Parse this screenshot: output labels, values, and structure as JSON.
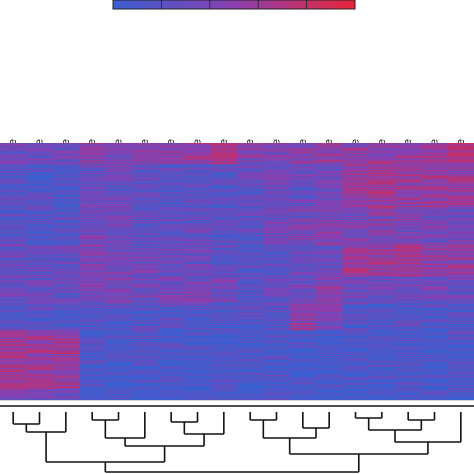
{
  "chart_data": {
    "type": "heatmap",
    "title": "",
    "xlabel": "",
    "ylabel": "",
    "legend": {
      "placement": "top-center",
      "colors": [
        "#3b5fd0",
        "#8a3fb0",
        "#e8253a"
      ]
    },
    "columns": [
      "HCC1428 - Exosome",
      "HCC1187 - Exosome",
      "MA-11 - Exosome",
      "MDA-MB-231 - Exosome",
      "Hs578T - Exosome",
      "HCC1569 - Exosome",
      "MCF7 - Exosome",
      "DU4475 - Exosome",
      "AU565 - Exosome",
      "MCF7 - Cell Line",
      "MA-11 - Cell Line",
      "HCC1428 - Cell Line",
      "DU4475 - Cell Line",
      "HCC1569 - Cell Line",
      "HCC1187 - Cell Line",
      "Hs578T - Cell Line",
      "AU565 - Cell Line",
      "MDA-MB-231 - Cell Line"
    ],
    "row_blocks": [
      {
        "rows": 20,
        "values": [
          0.3,
          0.3,
          0.35,
          0.45,
          0.4,
          0.45,
          0.5,
          0.55,
          0.6,
          0.4,
          0.45,
          0.45,
          0.5,
          0.5,
          0.55,
          0.55,
          0.6,
          0.7
        ]
      },
      {
        "rows": 40,
        "values": [
          0.15,
          0.15,
          0.15,
          0.3,
          0.3,
          0.25,
          0.2,
          0.2,
          0.2,
          0.3,
          0.35,
          0.3,
          0.35,
          0.55,
          0.6,
          0.55,
          0.55,
          0.55
        ]
      },
      {
        "rows": 35,
        "values": [
          0.2,
          0.2,
          0.2,
          0.35,
          0.3,
          0.25,
          0.25,
          0.25,
          0.2,
          0.25,
          0.35,
          0.4,
          0.4,
          0.4,
          0.45,
          0.4,
          0.35,
          0.35
        ]
      },
      {
        "rows": 30,
        "values": [
          0.3,
          0.3,
          0.3,
          0.4,
          0.35,
          0.3,
          0.3,
          0.3,
          0.25,
          0.2,
          0.25,
          0.3,
          0.3,
          0.55,
          0.55,
          0.6,
          0.5,
          0.5
        ]
      },
      {
        "rows": 25,
        "values": [
          0.25,
          0.3,
          0.3,
          0.35,
          0.35,
          0.35,
          0.35,
          0.4,
          0.35,
          0.2,
          0.25,
          0.3,
          0.45,
          0.3,
          0.3,
          0.3,
          0.3,
          0.25
        ]
      },
      {
        "rows": 25,
        "values": [
          0.15,
          0.15,
          0.15,
          0.15,
          0.15,
          0.15,
          0.15,
          0.15,
          0.15,
          0.15,
          0.2,
          0.5,
          0.45,
          0.15,
          0.15,
          0.15,
          0.15,
          0.15
        ]
      },
      {
        "rows": 55,
        "values": [
          0.6,
          0.6,
          0.55,
          0.1,
          0.1,
          0.1,
          0.1,
          0.1,
          0.1,
          0.1,
          0.1,
          0.1,
          0.1,
          0.1,
          0.1,
          0.1,
          0.1,
          0.1
        ]
      },
      {
        "rows": 10,
        "values": [
          0.3,
          0.3,
          0.3,
          0.1,
          0.1,
          0.1,
          0.1,
          0.1,
          0.1,
          0.1,
          0.1,
          0.1,
          0.1,
          0.1,
          0.1,
          0.1,
          0.1,
          0.1
        ]
      }
    ],
    "dendrogram": {
      "groups": [
        {
          "members": [
            0,
            1,
            2
          ]
        },
        {
          "members": [
            3,
            4,
            5,
            6,
            7,
            8
          ]
        },
        {
          "members": [
            9,
            10,
            11,
            12,
            13,
            14,
            15,
            16,
            17
          ]
        }
      ]
    }
  }
}
